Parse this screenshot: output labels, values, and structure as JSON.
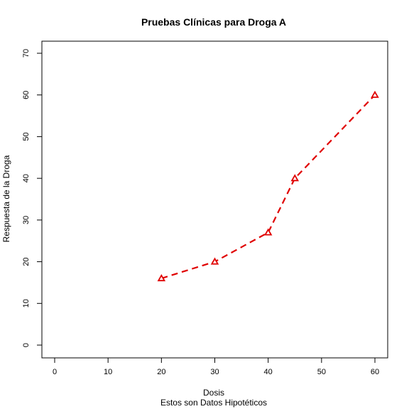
{
  "chart_data": {
    "type": "line",
    "title": "Pruebas Clínicas para Droga A",
    "xlabel": "Dosis",
    "subtitle": "Estos son Datos Hipotéticos",
    "ylabel": "Respuesta de la Droga",
    "xlim": [
      0,
      60
    ],
    "ylim": [
      0,
      70
    ],
    "xticks": [
      "0",
      "10",
      "20",
      "30",
      "40",
      "50",
      "60"
    ],
    "yticks": [
      "0",
      "10",
      "20",
      "30",
      "40",
      "50",
      "60",
      "70"
    ],
    "grid": false,
    "line_style": "dashed",
    "marker": "triangle",
    "color": "#e00000",
    "x": [
      20,
      30,
      40,
      45,
      60
    ],
    "y": [
      16,
      20,
      27,
      40,
      60
    ]
  }
}
